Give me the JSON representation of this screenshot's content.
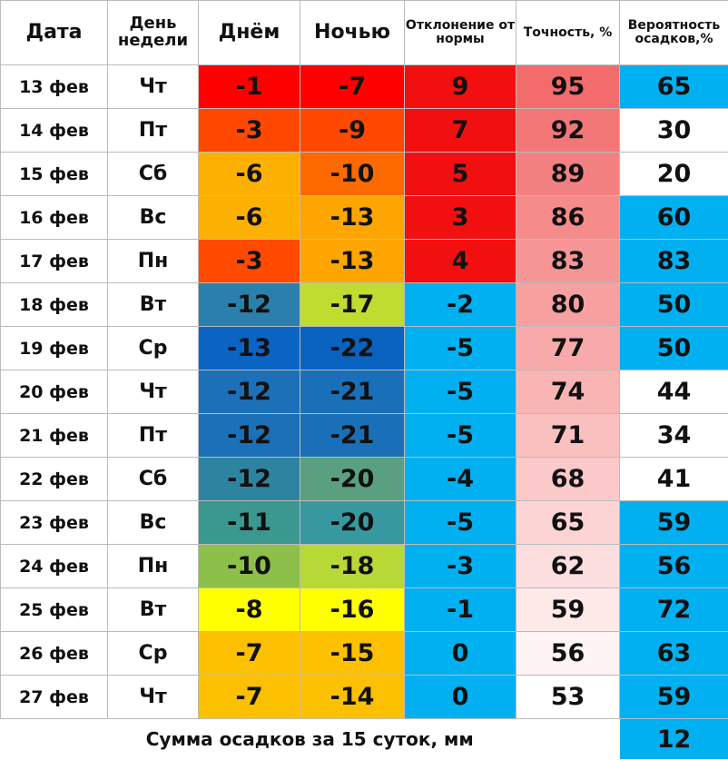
{
  "table": {
    "headers": [
      "Дата",
      "День недели",
      "Днём",
      "Ночью",
      "Отклонение от нормы",
      "Точность, %",
      "Вероятность осадков,%"
    ],
    "rows": [
      [
        "13 фев",
        "Чт",
        -1,
        -7,
        9,
        95,
        65
      ],
      [
        "14 фев",
        "Пт",
        -3,
        -9,
        7,
        92,
        30
      ],
      [
        "15 фев",
        "Сб",
        -6,
        -10,
        5,
        89,
        20
      ],
      [
        "16 фев",
        "Вс",
        -6,
        -13,
        3,
        86,
        60
      ],
      [
        "17 фев",
        "Пн",
        -3,
        -13,
        4,
        83,
        83
      ],
      [
        "18 фев",
        "Вт",
        -12,
        -17,
        -2,
        80,
        50
      ],
      [
        "19 фев",
        "Ср",
        -13,
        -22,
        -5,
        77,
        50
      ],
      [
        "20 фев",
        "Чт",
        -12,
        -21,
        -5,
        74,
        44
      ],
      [
        "21 фев",
        "Пт",
        -12,
        -21,
        -5,
        71,
        34
      ],
      [
        "22 фев",
        "Сб",
        -12,
        -20,
        -4,
        68,
        41
      ],
      [
        "23 фев",
        "Вс",
        -11,
        -20,
        -5,
        65,
        59
      ],
      [
        "24 фев",
        "Пн",
        -10,
        -18,
        -3,
        62,
        56
      ],
      [
        "25 фев",
        "Вт",
        -8,
        -16,
        -1,
        59,
        72
      ],
      [
        "26 фев",
        "Ср",
        -7,
        -15,
        0,
        56,
        63
      ],
      [
        "27 фев",
        "Чт",
        -7,
        -14,
        0,
        53,
        59
      ]
    ],
    "colors": [
      [
        "#ff0000",
        "#ff0000",
        "#f20f0f",
        "#f26c6c",
        "#00b0f0"
      ],
      [
        "#ff4800",
        "#ff4800",
        "#f20f0f",
        "#f37777",
        "#ffffff"
      ],
      [
        "#fcb000",
        "#ff6a00",
        "#f20f0f",
        "#f48181",
        "#ffffff"
      ],
      [
        "#fcb000",
        "#ffa500",
        "#f20f0f",
        "#f58b8b",
        "#00b0f0"
      ],
      [
        "#ff4a00",
        "#ffa500",
        "#f20f0f",
        "#f69595",
        "#00b0f0"
      ],
      [
        "#2a80ac",
        "#c0dc30",
        "#00b0f0",
        "#f7a0a0",
        "#00b0f0"
      ],
      [
        "#0a64c4",
        "#0a62c0",
        "#00b0f0",
        "#f8aaaa",
        "#00b0f0"
      ],
      [
        "#1c70b8",
        "#1a70b8",
        "#00b0f0",
        "#f9b4b4",
        "#ffffff"
      ],
      [
        "#1c70b8",
        "#1a70b8",
        "#00b0f0",
        "#fabfbf",
        "#ffffff"
      ],
      [
        "#2e84a0",
        "#5aa080",
        "#00b0f0",
        "#fbc9c9",
        "#ffffff"
      ],
      [
        "#3a9890",
        "#3898a0",
        "#00b0f0",
        "#fcd4d4",
        "#00b0f0"
      ],
      [
        "#8cc04a",
        "#b8d838",
        "#00b0f0",
        "#fddede",
        "#00b0f0"
      ],
      [
        "#ffff00",
        "#ffff00",
        "#00b0f0",
        "#fee9e9",
        "#00b0f0"
      ],
      [
        "#fcc000",
        "#fcc000",
        "#00b0f0",
        "#fff4f4",
        "#00b0f0"
      ],
      [
        "#fcc000",
        "#fcc000",
        "#00b0f0",
        "#ffffff",
        "#00b0f0"
      ]
    ],
    "footer": {
      "label": "Сумма осадков за 15 суток, мм",
      "value": 12,
      "color": "#00b0f0"
    }
  }
}
